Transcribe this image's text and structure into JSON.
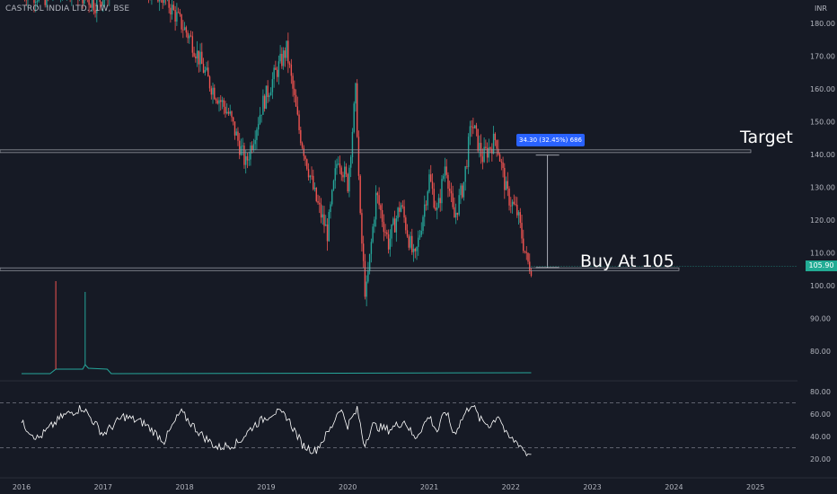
{
  "header": {
    "title": "CASTROL INDIA LTD., 1W, BSE",
    "currency": "INR"
  },
  "annotations": {
    "target_label": "Target",
    "buy_label": "Buy At 105",
    "measure_label": "34.30 (32.45%) 686",
    "last_price_label": "105.90"
  },
  "colors": {
    "background": "#161a25",
    "up": "#26a69a",
    "down": "#ef5350",
    "level_line": "#9598a1",
    "volume_line": "#26a69a",
    "rsi_line": "#ffffff",
    "measure_box": "#2962ff",
    "last_price_tag": "#22ab94"
  },
  "chart_data": [
    {
      "type": "candlestick",
      "interval": "1W",
      "y_axis_ticks": [
        80,
        90,
        100,
        110,
        120,
        130,
        140,
        150,
        160,
        170,
        180
      ],
      "x_axis_ticks": [
        "2016",
        "2017",
        "2018",
        "2019",
        "2020",
        "2021",
        "2022",
        "2023",
        "2024",
        "2025"
      ],
      "ylim": [
        75,
        184
      ],
      "horizontal_levels": [
        141,
        105
      ],
      "measure": {
        "from": 105.5,
        "to": 139.8,
        "change": 34.3,
        "percent": 32.45,
        "bars": 686
      },
      "last_price": 105.9,
      "close_path": [
        {
          "x": 2016.0,
          "y": 190
        },
        {
          "x": 2016.3,
          "y": 188
        },
        {
          "x": 2016.55,
          "y": 192
        },
        {
          "x": 2016.9,
          "y": 186
        },
        {
          "x": 2017.3,
          "y": 195
        },
        {
          "x": 2017.75,
          "y": 188
        },
        {
          "x": 2018.08,
          "y": 175
        },
        {
          "x": 2018.3,
          "y": 162
        },
        {
          "x": 2018.55,
          "y": 152
        },
        {
          "x": 2018.75,
          "y": 137
        },
        {
          "x": 2018.95,
          "y": 155
        },
        {
          "x": 2019.1,
          "y": 164
        },
        {
          "x": 2019.25,
          "y": 172
        },
        {
          "x": 2019.4,
          "y": 148
        },
        {
          "x": 2019.6,
          "y": 127
        },
        {
          "x": 2019.75,
          "y": 116
        },
        {
          "x": 2019.88,
          "y": 140
        },
        {
          "x": 2020.0,
          "y": 131
        },
        {
          "x": 2020.1,
          "y": 160
        },
        {
          "x": 2020.15,
          "y": 121
        },
        {
          "x": 2020.22,
          "y": 96
        },
        {
          "x": 2020.35,
          "y": 128
        },
        {
          "x": 2020.5,
          "y": 113
        },
        {
          "x": 2020.65,
          "y": 125
        },
        {
          "x": 2020.82,
          "y": 107
        },
        {
          "x": 2021.0,
          "y": 133
        },
        {
          "x": 2021.1,
          "y": 122
        },
        {
          "x": 2021.2,
          "y": 138
        },
        {
          "x": 2021.3,
          "y": 120
        },
        {
          "x": 2021.42,
          "y": 131
        },
        {
          "x": 2021.52,
          "y": 150
        },
        {
          "x": 2021.65,
          "y": 139
        },
        {
          "x": 2021.82,
          "y": 145
        },
        {
          "x": 2021.95,
          "y": 128
        },
        {
          "x": 2022.08,
          "y": 122
        },
        {
          "x": 2022.2,
          "y": 107
        },
        {
          "x": 2022.25,
          "y": 105.9
        }
      ],
      "rsi": {
        "levels": [
          70,
          30
        ],
        "y_axis_ticks": [
          20,
          40,
          60,
          80
        ],
        "path": [
          {
            "x": 2016.0,
            "y": 52
          },
          {
            "x": 2016.2,
            "y": 38
          },
          {
            "x": 2016.5,
            "y": 58
          },
          {
            "x": 2016.75,
            "y": 66
          },
          {
            "x": 2017.0,
            "y": 42
          },
          {
            "x": 2017.25,
            "y": 58
          },
          {
            "x": 2017.5,
            "y": 52
          },
          {
            "x": 2017.75,
            "y": 36
          },
          {
            "x": 2017.95,
            "y": 62
          },
          {
            "x": 2018.2,
            "y": 42
          },
          {
            "x": 2018.4,
            "y": 30
          },
          {
            "x": 2018.65,
            "y": 34
          },
          {
            "x": 2018.85,
            "y": 50
          },
          {
            "x": 2019.1,
            "y": 62
          },
          {
            "x": 2019.25,
            "y": 58
          },
          {
            "x": 2019.45,
            "y": 32
          },
          {
            "x": 2019.6,
            "y": 27
          },
          {
            "x": 2019.8,
            "y": 48
          },
          {
            "x": 2019.9,
            "y": 66
          },
          {
            "x": 2020.0,
            "y": 50
          },
          {
            "x": 2020.12,
            "y": 64
          },
          {
            "x": 2020.2,
            "y": 32
          },
          {
            "x": 2020.3,
            "y": 50
          },
          {
            "x": 2020.5,
            "y": 46
          },
          {
            "x": 2020.7,
            "y": 54
          },
          {
            "x": 2020.82,
            "y": 38
          },
          {
            "x": 2021.0,
            "y": 58
          },
          {
            "x": 2021.1,
            "y": 44
          },
          {
            "x": 2021.2,
            "y": 64
          },
          {
            "x": 2021.3,
            "y": 42
          },
          {
            "x": 2021.42,
            "y": 58
          },
          {
            "x": 2021.52,
            "y": 70
          },
          {
            "x": 2021.62,
            "y": 55
          },
          {
            "x": 2021.75,
            "y": 50
          },
          {
            "x": 2021.85,
            "y": 60
          },
          {
            "x": 2021.95,
            "y": 40
          },
          {
            "x": 2022.1,
            "y": 34
          },
          {
            "x": 2022.2,
            "y": 24
          },
          {
            "x": 2022.25,
            "y": 27
          }
        ]
      }
    }
  ]
}
